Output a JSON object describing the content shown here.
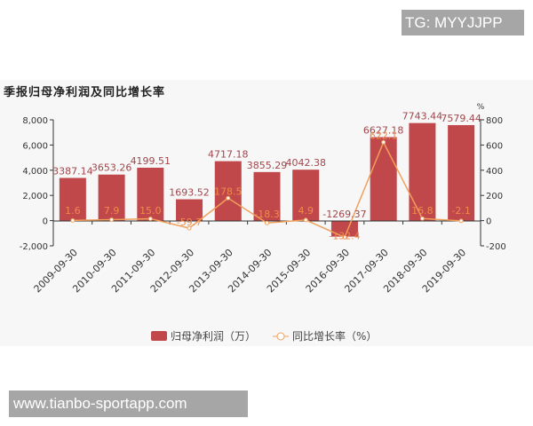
{
  "watermark_top": "TG: MYYJJPP",
  "watermark_bottom": "www.tianbo-sportapp.com",
  "chart_data": {
    "type": "bar",
    "title": "季报归母净利润及同比增长率",
    "categories": [
      "2009-09-30",
      "2010-09-30",
      "2011-09-30",
      "2012-09-30",
      "2013-09-30",
      "2014-09-30",
      "2015-09-30",
      "2016-09-30",
      "2017-09-30",
      "2018-09-30",
      "2019-09-30"
    ],
    "series": [
      {
        "name": "归母净利润（万）",
        "type": "bar",
        "axis": "left",
        "color": "#c0474a",
        "values": [
          3387.14,
          3653.26,
          4199.51,
          1693.52,
          4717.18,
          3855.29,
          4042.38,
          -1269.37,
          6627.18,
          7743.44,
          7579.44
        ],
        "labels": [
          "3387.14",
          "3653.26",
          "4199.51",
          "1693.52",
          "4717.18",
          "3855.29",
          "4042.38",
          "-1269.37",
          "6627.18",
          "7743.44",
          "7579.44"
        ]
      },
      {
        "name": "同比增长率（%）",
        "type": "line",
        "axis": "right",
        "color": "#f0a05a",
        "values": [
          1.6,
          7.9,
          15.0,
          -59.7,
          178.5,
          -18.3,
          4.9,
          -132.4,
          622.1,
          16.8,
          -2.1
        ],
        "labels": [
          "1.6",
          "7.9",
          "15.0",
          "-59.7",
          "178.5",
          "-18.3",
          "4.9",
          "-132.4",
          "622.1",
          "16.8",
          "-2.1"
        ]
      }
    ],
    "left_axis": {
      "ticks": [
        "8,000",
        "6,000",
        "4,000",
        "2,000",
        "0",
        "-2,000"
      ],
      "values": [
        8000,
        6000,
        4000,
        2000,
        0,
        -2000
      ],
      "ylim": [
        -2000,
        8000
      ]
    },
    "right_axis": {
      "unit": "%",
      "ticks": [
        "800",
        "600",
        "400",
        "200",
        "0",
        "-200"
      ],
      "values": [
        800,
        600,
        400,
        200,
        0,
        -200
      ],
      "ylim": [
        -200,
        800
      ]
    },
    "legend": {
      "position": "bottom",
      "items": [
        "归母净利润（万）",
        "同比增长率（%）"
      ]
    },
    "grid": false
  }
}
